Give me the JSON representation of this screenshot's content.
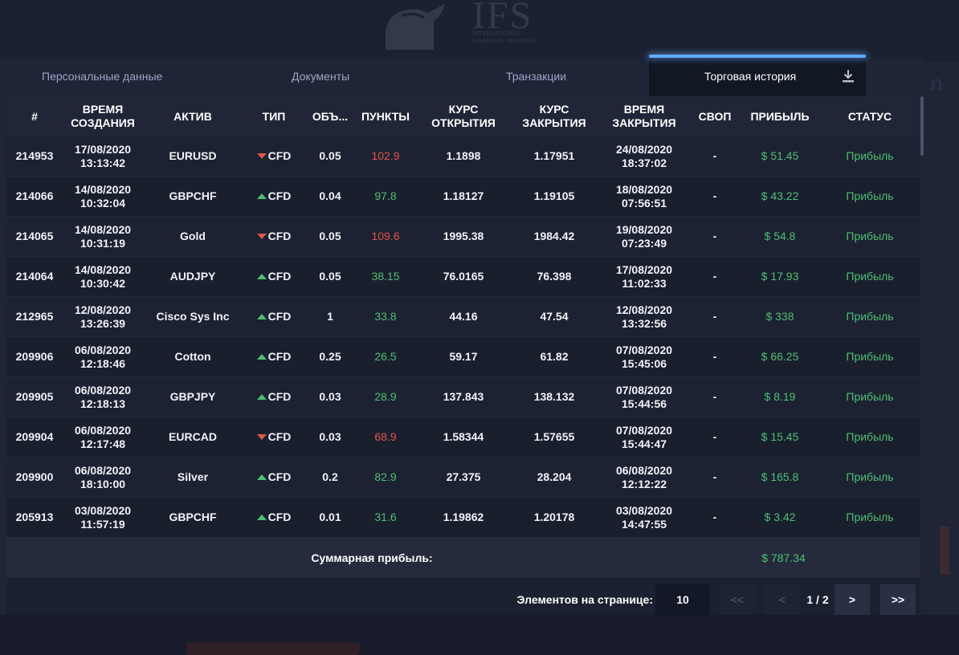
{
  "logo": {
    "text": "IFS",
    "tagline": "INTERNATIONAL FINANCIAL SERVICES"
  },
  "tabs": [
    {
      "label": "Персональные данные"
    },
    {
      "label": "Документы"
    },
    {
      "label": "Транзакции"
    },
    {
      "label": "Торговая история",
      "active": true
    }
  ],
  "download_icon": "download-icon",
  "table": {
    "headers": {
      "id": "#",
      "created": "ВРЕМЯ СОЗДАНИЯ",
      "asset": "АКТИВ",
      "type": "ТИП",
      "volume": "ОБЪ...",
      "points": "ПУНКТЫ",
      "open_rate": "КУРС ОТКРЫТИЯ",
      "close_rate": "КУРС ЗАКРЫТИЯ",
      "closed": "ВРЕМЯ ЗАКРЫТИЯ",
      "swap": "СВОП",
      "profit": "ПРИБЫЛЬ",
      "status": "СТАТУС"
    },
    "rows": [
      {
        "id": "214953",
        "created_date": "17/08/2020",
        "created_time": "13:13:42",
        "asset": "EURUSD",
        "direction": "down",
        "type": "CFD",
        "volume": "0.05",
        "points": "102.9",
        "open_rate": "1.1898",
        "close_rate": "1.17951",
        "closed_date": "24/08/2020",
        "closed_time": "18:37:02",
        "swap": "-",
        "profit": "$ 51.45",
        "status": "Прибыль"
      },
      {
        "id": "214066",
        "created_date": "14/08/2020",
        "created_time": "10:32:04",
        "asset": "GBPCHF",
        "direction": "up",
        "type": "CFD",
        "volume": "0.04",
        "points": "97.8",
        "open_rate": "1.18127",
        "close_rate": "1.19105",
        "closed_date": "18/08/2020",
        "closed_time": "07:56:51",
        "swap": "-",
        "profit": "$ 43.22",
        "status": "Прибыль"
      },
      {
        "id": "214065",
        "created_date": "14/08/2020",
        "created_time": "10:31:19",
        "asset": "Gold",
        "direction": "down",
        "type": "CFD",
        "volume": "0.05",
        "points": "109.6",
        "open_rate": "1995.38",
        "close_rate": "1984.42",
        "closed_date": "19/08/2020",
        "closed_time": "07:23:49",
        "swap": "-",
        "profit": "$ 54.8",
        "status": "Прибыль"
      },
      {
        "id": "214064",
        "created_date": "14/08/2020",
        "created_time": "10:30:42",
        "asset": "AUDJPY",
        "direction": "up",
        "type": "CFD",
        "volume": "0.05",
        "points": "38.15",
        "open_rate": "76.0165",
        "close_rate": "76.398",
        "closed_date": "17/08/2020",
        "closed_time": "11:02:33",
        "swap": "-",
        "profit": "$ 17.93",
        "status": "Прибыль"
      },
      {
        "id": "212965",
        "created_date": "12/08/2020",
        "created_time": "13:26:39",
        "asset": "Cisco Sys Inc",
        "direction": "up",
        "type": "CFD",
        "volume": "1",
        "points": "33.8",
        "open_rate": "44.16",
        "close_rate": "47.54",
        "closed_date": "12/08/2020",
        "closed_time": "13:32:56",
        "swap": "-",
        "profit": "$ 338",
        "status": "Прибыль"
      },
      {
        "id": "209906",
        "created_date": "06/08/2020",
        "created_time": "12:18:46",
        "asset": "Cotton",
        "direction": "up",
        "type": "CFD",
        "volume": "0.25",
        "points": "26.5",
        "open_rate": "59.17",
        "close_rate": "61.82",
        "closed_date": "07/08/2020",
        "closed_time": "15:45:06",
        "swap": "-",
        "profit": "$ 66.25",
        "status": "Прибыль"
      },
      {
        "id": "209905",
        "created_date": "06/08/2020",
        "created_time": "12:18:13",
        "asset": "GBPJPY",
        "direction": "up",
        "type": "CFD",
        "volume": "0.03",
        "points": "28.9",
        "open_rate": "137.843",
        "close_rate": "138.132",
        "closed_date": "07/08/2020",
        "closed_time": "15:44:56",
        "swap": "-",
        "profit": "$ 8.19",
        "status": "Прибыль"
      },
      {
        "id": "209904",
        "created_date": "06/08/2020",
        "created_time": "12:17:48",
        "asset": "EURCAD",
        "direction": "down",
        "type": "CFD",
        "volume": "0.03",
        "points": "68.9",
        "open_rate": "1.58344",
        "close_rate": "1.57655",
        "closed_date": "07/08/2020",
        "closed_time": "15:44:47",
        "swap": "-",
        "profit": "$ 15.45",
        "status": "Прибыль"
      },
      {
        "id": "209900",
        "created_date": "06/08/2020",
        "created_time": "18:10:00",
        "asset": "Silver",
        "direction": "up",
        "type": "CFD",
        "volume": "0.2",
        "points": "82.9",
        "open_rate": "27.375",
        "close_rate": "28.204",
        "closed_date": "06/08/2020",
        "closed_time": "12:12:22",
        "swap": "-",
        "profit": "$ 165.8",
        "status": "Прибыль"
      },
      {
        "id": "205913",
        "created_date": "03/08/2020",
        "created_time": "11:57:19",
        "asset": "GBPCHF",
        "direction": "up",
        "type": "CFD",
        "volume": "0.01",
        "points": "31.6",
        "open_rate": "1.19862",
        "close_rate": "1.20178",
        "closed_date": "03/08/2020",
        "closed_time": "14:47:55",
        "swap": "-",
        "profit": "$ 3.42",
        "status": "Прибыль"
      }
    ]
  },
  "summary": {
    "label": "Суммарная прибыль:",
    "value": "$ 787.34"
  },
  "pagination": {
    "per_page_label": "Элементов на странице:",
    "per_page_value": "10",
    "first": "<<",
    "prev": "<",
    "info": "1 / 2",
    "next": ">",
    "last": ">>"
  },
  "colors": {
    "accent": "#63a9ff",
    "positive": "#4fbf73",
    "negative": "#e0564c",
    "background": "#1b2030"
  }
}
